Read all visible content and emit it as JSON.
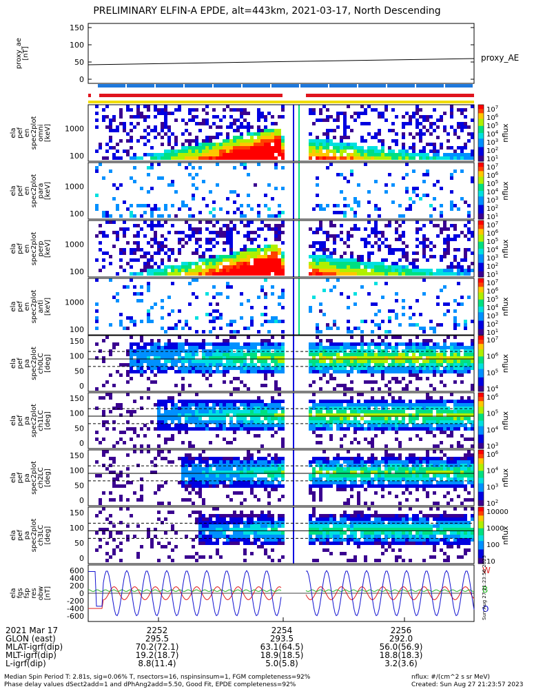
{
  "title": "PRELIMINARY ELFIN-A EPDE, alt=443km, 2021-03-17, North Descending",
  "colors": {
    "red": "#e0141e",
    "blue": "#1e78dc",
    "yellow": "#f0dc00",
    "trace_black": "#000000",
    "bx_red": "#e02020",
    "by_green": "#20b020",
    "bz_blue": "#1010d0"
  },
  "panels": [
    {
      "id": "proxy_ae",
      "ylabel_lines": [
        "proxy_ae",
        "[nT]"
      ],
      "right_label": "proxy_AE",
      "yticks": [
        "150",
        "100",
        "50",
        "0"
      ]
    },
    {
      "id": "pef_en_omni",
      "ylabel_lines": [
        "ela",
        "pef",
        "en",
        "spec2plot",
        "omni",
        "[keV]"
      ],
      "yticks": [
        "1000",
        "100"
      ],
      "cbar_ticks": [
        "10^7",
        "10^6",
        "10^5",
        "10^4",
        "10^3",
        "10^2",
        "10^1"
      ],
      "cbar_label": "nflux"
    },
    {
      "id": "pef_en_para",
      "ylabel_lines": [
        "ela",
        "pef",
        "en",
        "spec2plot",
        "para",
        "[keV]"
      ],
      "yticks": [
        "1000",
        "100"
      ],
      "cbar_ticks": [
        "10^7",
        "10^6",
        "10^5",
        "10^4",
        "10^3",
        "10^2",
        "10^1"
      ],
      "cbar_label": "nflux"
    },
    {
      "id": "pef_en_perp",
      "ylabel_lines": [
        "ela",
        "pef",
        "en",
        "spec2plot",
        "perp",
        "[keV]"
      ],
      "yticks": [
        "1000",
        "100"
      ],
      "cbar_ticks": [
        "10^7",
        "10^6",
        "10^5",
        "10^4",
        "10^3",
        "10^2",
        "10^1"
      ],
      "cbar_label": "nflux"
    },
    {
      "id": "pef_en_anti",
      "ylabel_lines": [
        "ela",
        "pef",
        "en",
        "spec2plot",
        "anti",
        "[keV]"
      ],
      "yticks": [
        "1000",
        "100"
      ],
      "cbar_ticks": [
        "10^7",
        "10^6",
        "10^5",
        "10^4",
        "10^3",
        "10^2",
        "10^1"
      ],
      "cbar_label": "nflux"
    },
    {
      "id": "pef_pa_ch0",
      "ylabel_lines": [
        "ela",
        "pef",
        "pa",
        "spec2plot",
        "ch0LC",
        "[deg]"
      ],
      "yticks": [
        "150",
        "100",
        "50",
        "0"
      ],
      "cbar_ticks": [
        "10^7",
        "10^6",
        "10^5",
        "10^4"
      ],
      "cbar_label": "nflux"
    },
    {
      "id": "pef_pa_ch1",
      "ylabel_lines": [
        "ela",
        "pef",
        "pa",
        "spec2plot",
        "ch1LC",
        "[deg]"
      ],
      "yticks": [
        "150",
        "100",
        "50",
        "0"
      ],
      "cbar_ticks": [
        "10^6",
        "10^5",
        "10^4",
        "10^3"
      ],
      "cbar_label": "nflux"
    },
    {
      "id": "pef_pa_ch2",
      "ylabel_lines": [
        "ela",
        "pef",
        "pa",
        "spec2plot",
        "ch2LC",
        "[deg]"
      ],
      "yticks": [
        "150",
        "100",
        "50",
        "0"
      ],
      "cbar_ticks": [
        "10^6",
        "10^4",
        "10^3",
        "10^2"
      ],
      "cbar_label": "nflux"
    },
    {
      "id": "pef_pa_ch3",
      "ylabel_lines": [
        "ela",
        "pef",
        "pa",
        "spec2plot",
        "ch3LC",
        "[deg]"
      ],
      "yticks": [
        "150",
        "100",
        "50",
        "0"
      ],
      "cbar_ticks": [
        "10000",
        "1000",
        "100",
        "10"
      ],
      "cbar_label": "nflux"
    },
    {
      "id": "fgs_res",
      "ylabel_lines": [
        "ela",
        "fgs",
        "fsp",
        "res",
        "obw",
        "[nT]"
      ],
      "yticks": [
        "600",
        "400",
        "200",
        "0",
        "-200",
        "-400",
        "-600"
      ],
      "legend": [
        "W",
        "B",
        "O"
      ]
    }
  ],
  "chart_data": {
    "type": "multi-panel spectrogram and line",
    "title": "PRELIMINARY ELFIN-A EPDE, alt=443km, 2021-03-17, North Descending",
    "x_ticks": [
      "2252",
      "2254",
      "2256"
    ],
    "proxy_ae": {
      "series": "proxy_AE",
      "x": [
        "start",
        "end"
      ],
      "y": [
        42,
        60
      ],
      "ylim": [
        -10,
        160
      ]
    },
    "fgs_res": {
      "ylim": [
        -650,
        650
      ],
      "series": [
        {
          "name": "W",
          "color": "red",
          "amplitude": 150,
          "period_s": 17
        },
        {
          "name": "B",
          "color": "green",
          "amplitude": 20,
          "period_s": 8
        },
        {
          "name": "O",
          "color": "blue",
          "amplitude": 520,
          "period_s": 17
        }
      ]
    },
    "spectrograms": [
      "omni",
      "para",
      "perp",
      "anti",
      "ch0LC",
      "ch1LC",
      "ch2LC",
      "ch3LC"
    ],
    "data_gap": true
  },
  "footer": {
    "rows": [
      [
        "2021 Mar 17",
        "2252",
        "2254",
        "2256"
      ],
      [
        "GLON (east)",
        "295.5",
        "293.5",
        "292.0"
      ],
      [
        "MLAT-igrf(dip)",
        "70.2(72.1)",
        "63.1(64.5)",
        "56.0(56.9)"
      ],
      [
        "MLT-igrf(dip)",
        "19.2(18.7)",
        "18.9(18.5)",
        "18.8(18.3)"
      ],
      [
        "L-igrf(dip)",
        "8.8(11.4)",
        "5.0(5.8)",
        "3.2(3.6)"
      ]
    ],
    "note1": "Median Spin Period T: 2.81s, sig=0.06% T, nsectors=16, nspinsinsum=1, FGM completeness=92%",
    "note2": "Phase delay values dSect2add=1 and dPhAng2add=5.50, Good Fit, EPDE completeness=92%",
    "flux_unit": "nflux: #/(cm^2 s sr MeV)",
    "created": "Created: Sun Aug 27 21:23:57 2023",
    "stamp": "Sun Aug 27 21:23:56 2023"
  }
}
